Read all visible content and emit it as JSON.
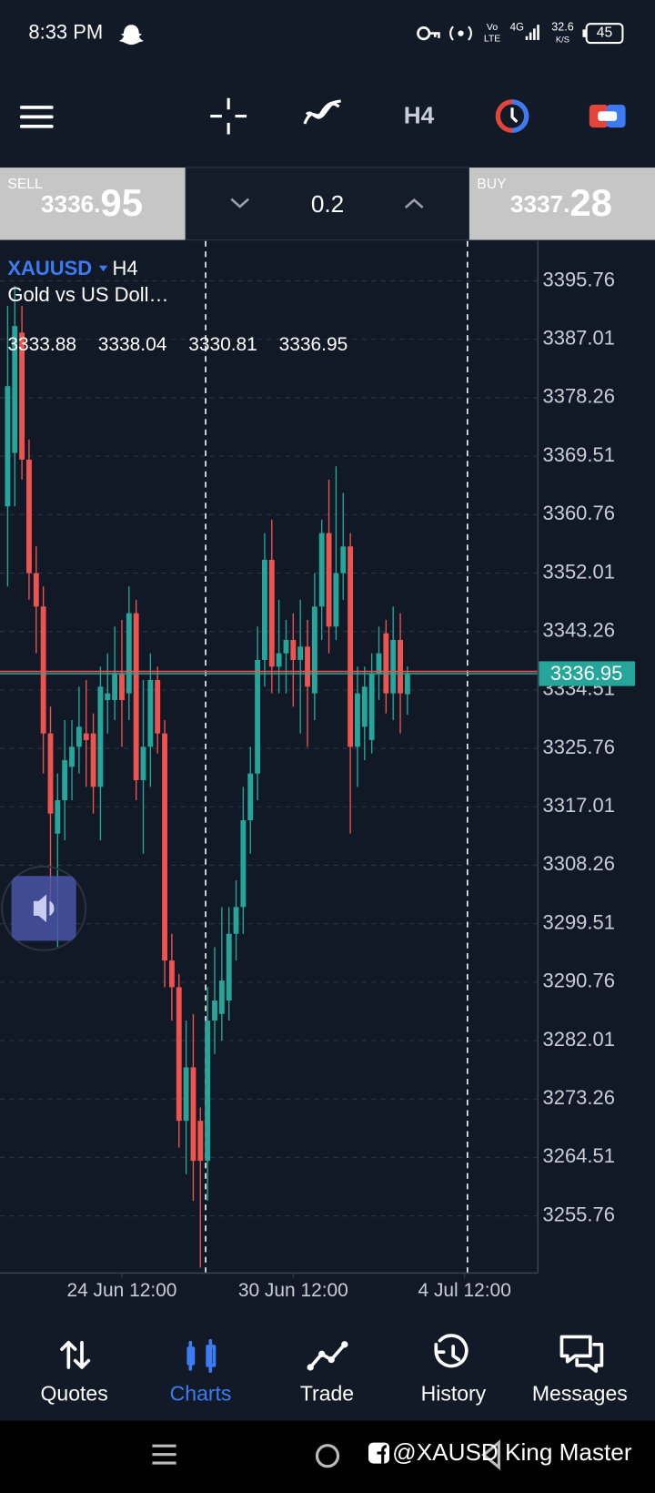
{
  "status_bar": {
    "time": "8:33 PM",
    "vo": "Vo",
    "lte": "LTE",
    "network": "4G",
    "speed": "32.6",
    "speed_unit": "K/S",
    "battery": "45"
  },
  "toolbar": {
    "timeframe": "H4"
  },
  "trade": {
    "sell_label": "SELL",
    "sell_price": 3336.95,
    "volume": 0.2,
    "buy_label": "BUY",
    "buy_price": 3337.28
  },
  "chart_data": {
    "type": "candlestick",
    "symbol": "XAUUSD",
    "timeframe": "H4",
    "description": "Gold vs US Doll…",
    "open": [
      3362,
      3370,
      3388,
      3369,
      3352,
      3347,
      3328,
      3313,
      3318,
      3323,
      3326,
      3328,
      3328,
      3320,
      3333,
      3333,
      3337,
      3334,
      3346,
      3321,
      3326,
      3336,
      3328,
      3294,
      3290,
      3270,
      3278,
      3270,
      3264,
      3285,
      3286,
      3288,
      3298,
      3302,
      3315,
      3322,
      3339,
      3354,
      3338,
      3340,
      3342,
      3339,
      3341,
      3334,
      3347,
      3358,
      3344,
      3352,
      3356,
      3326,
      3329,
      3327,
      3337,
      3343,
      3334,
      3342,
      3333.88
    ],
    "high": [
      3392,
      3395,
      3392,
      3372,
      3356,
      3350,
      3332,
      3322,
      3330,
      3330,
      3335,
      3336,
      3331,
      3338,
      3340,
      3344,
      3345,
      3350,
      3348,
      3336,
      3340,
      3338,
      3330,
      3298,
      3292,
      3285,
      3286,
      3272,
      3290,
      3296,
      3302,
      3302,
      3306,
      3320,
      3326,
      3344,
      3358,
      3360,
      3348,
      3345,
      3346,
      3348,
      3345,
      3352,
      3360,
      3366,
      3368,
      3364,
      3358,
      3338,
      3338,
      3340,
      3344,
      3345,
      3347,
      3346,
      3338.04
    ],
    "low": [
      3350,
      3362,
      3366,
      3348,
      3340,
      3322,
      3302,
      3296,
      3312,
      3318,
      3322,
      3320,
      3316,
      3312,
      3328,
      3330,
      3326,
      3330,
      3318,
      3310,
      3320,
      3325,
      3290,
      3285,
      3266,
      3262,
      3258,
      3248,
      3258,
      3280,
      3282,
      3285,
      3294,
      3298,
      3310,
      3318,
      3335,
      3334,
      3334,
      3334,
      3332,
      3328,
      3326,
      3330,
      3342,
      3340,
      3342,
      3348,
      3313,
      3320,
      3324,
      3325,
      3333,
      3331,
      3330,
      3328,
      3330.81
    ],
    "close": [
      3380,
      3389,
      3369,
      3352,
      3347,
      3328,
      3316,
      3318,
      3324,
      3326,
      3329,
      3327,
      3320,
      3335,
      3334,
      3337,
      3333,
      3346,
      3321,
      3326,
      3336,
      3328,
      3294,
      3290,
      3270,
      3278,
      3264,
      3264,
      3285,
      3288,
      3291,
      3298,
      3302,
      3315,
      3322,
      3339,
      3354,
      3338,
      3340,
      3342,
      3339,
      3341,
      3335,
      3347,
      3358,
      3344,
      3352,
      3356,
      3326,
      3334,
      3335,
      3337,
      3340,
      3334,
      3342,
      3334,
      3336.95
    ],
    "up_color": "#26a69a",
    "down_color": "#ef5350",
    "xlim": [
      -1.07,
      74.27
    ],
    "xticks": [
      {
        "value": 16,
        "label": "24 Jun 12:00"
      },
      {
        "value": 40,
        "label": "30 Jun 12:00"
      },
      {
        "value": 64,
        "label": "4 Jul 12:00"
      }
    ],
    "ylim": [
      3247.2,
      3401.75
    ],
    "yticks": [
      3395.76,
      3387.01,
      3378.26,
      3369.51,
      3360.76,
      3352.01,
      3343.26,
      3334.51,
      3325.76,
      3317.01,
      3308.26,
      3299.51,
      3290.76,
      3282.01,
      3273.26,
      3264.51,
      3255.76
    ],
    "grid": true
  },
  "nav": [
    {
      "label": "Quotes",
      "active": false
    },
    {
      "label": "Charts",
      "active": true
    },
    {
      "label": "Trade",
      "active": false
    },
    {
      "label": "History",
      "active": false
    },
    {
      "label": "Messages",
      "active": false
    }
  ],
  "watermark": "@XAUSD King Master"
}
